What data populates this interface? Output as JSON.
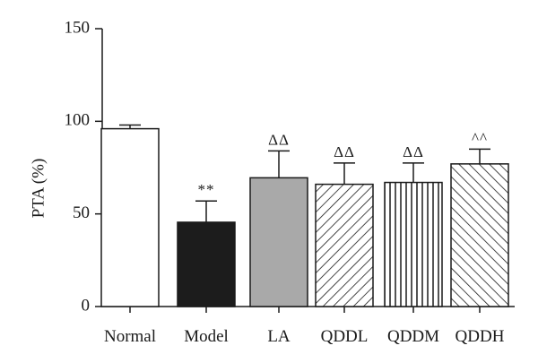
{
  "chart_data": {
    "type": "bar",
    "title": "",
    "xlabel": "",
    "ylabel": "PTA (%)",
    "ylim": [
      0,
      150
    ],
    "yticks": [
      0,
      50,
      100,
      150
    ],
    "grid": false,
    "categories": [
      "Normal",
      "Model",
      "LA",
      "QDDL",
      "QDDM",
      "QDDH"
    ],
    "values": [
      96,
      45.5,
      69.5,
      66,
      67,
      77
    ],
    "errors": [
      2,
      11.5,
      14.5,
      11.5,
      10.5,
      8
    ],
    "significance": [
      "",
      "**",
      "ΔΔ",
      "ΔΔ",
      "ΔΔ",
      "^^"
    ],
    "fills": [
      "white",
      "black",
      "gray",
      "diag-down",
      "vertical",
      "diag-up"
    ],
    "colors": {
      "model_fill": "#1c1c1c",
      "la_fill": "#a9a9a9",
      "stroke": "#1a1a1a"
    }
  }
}
